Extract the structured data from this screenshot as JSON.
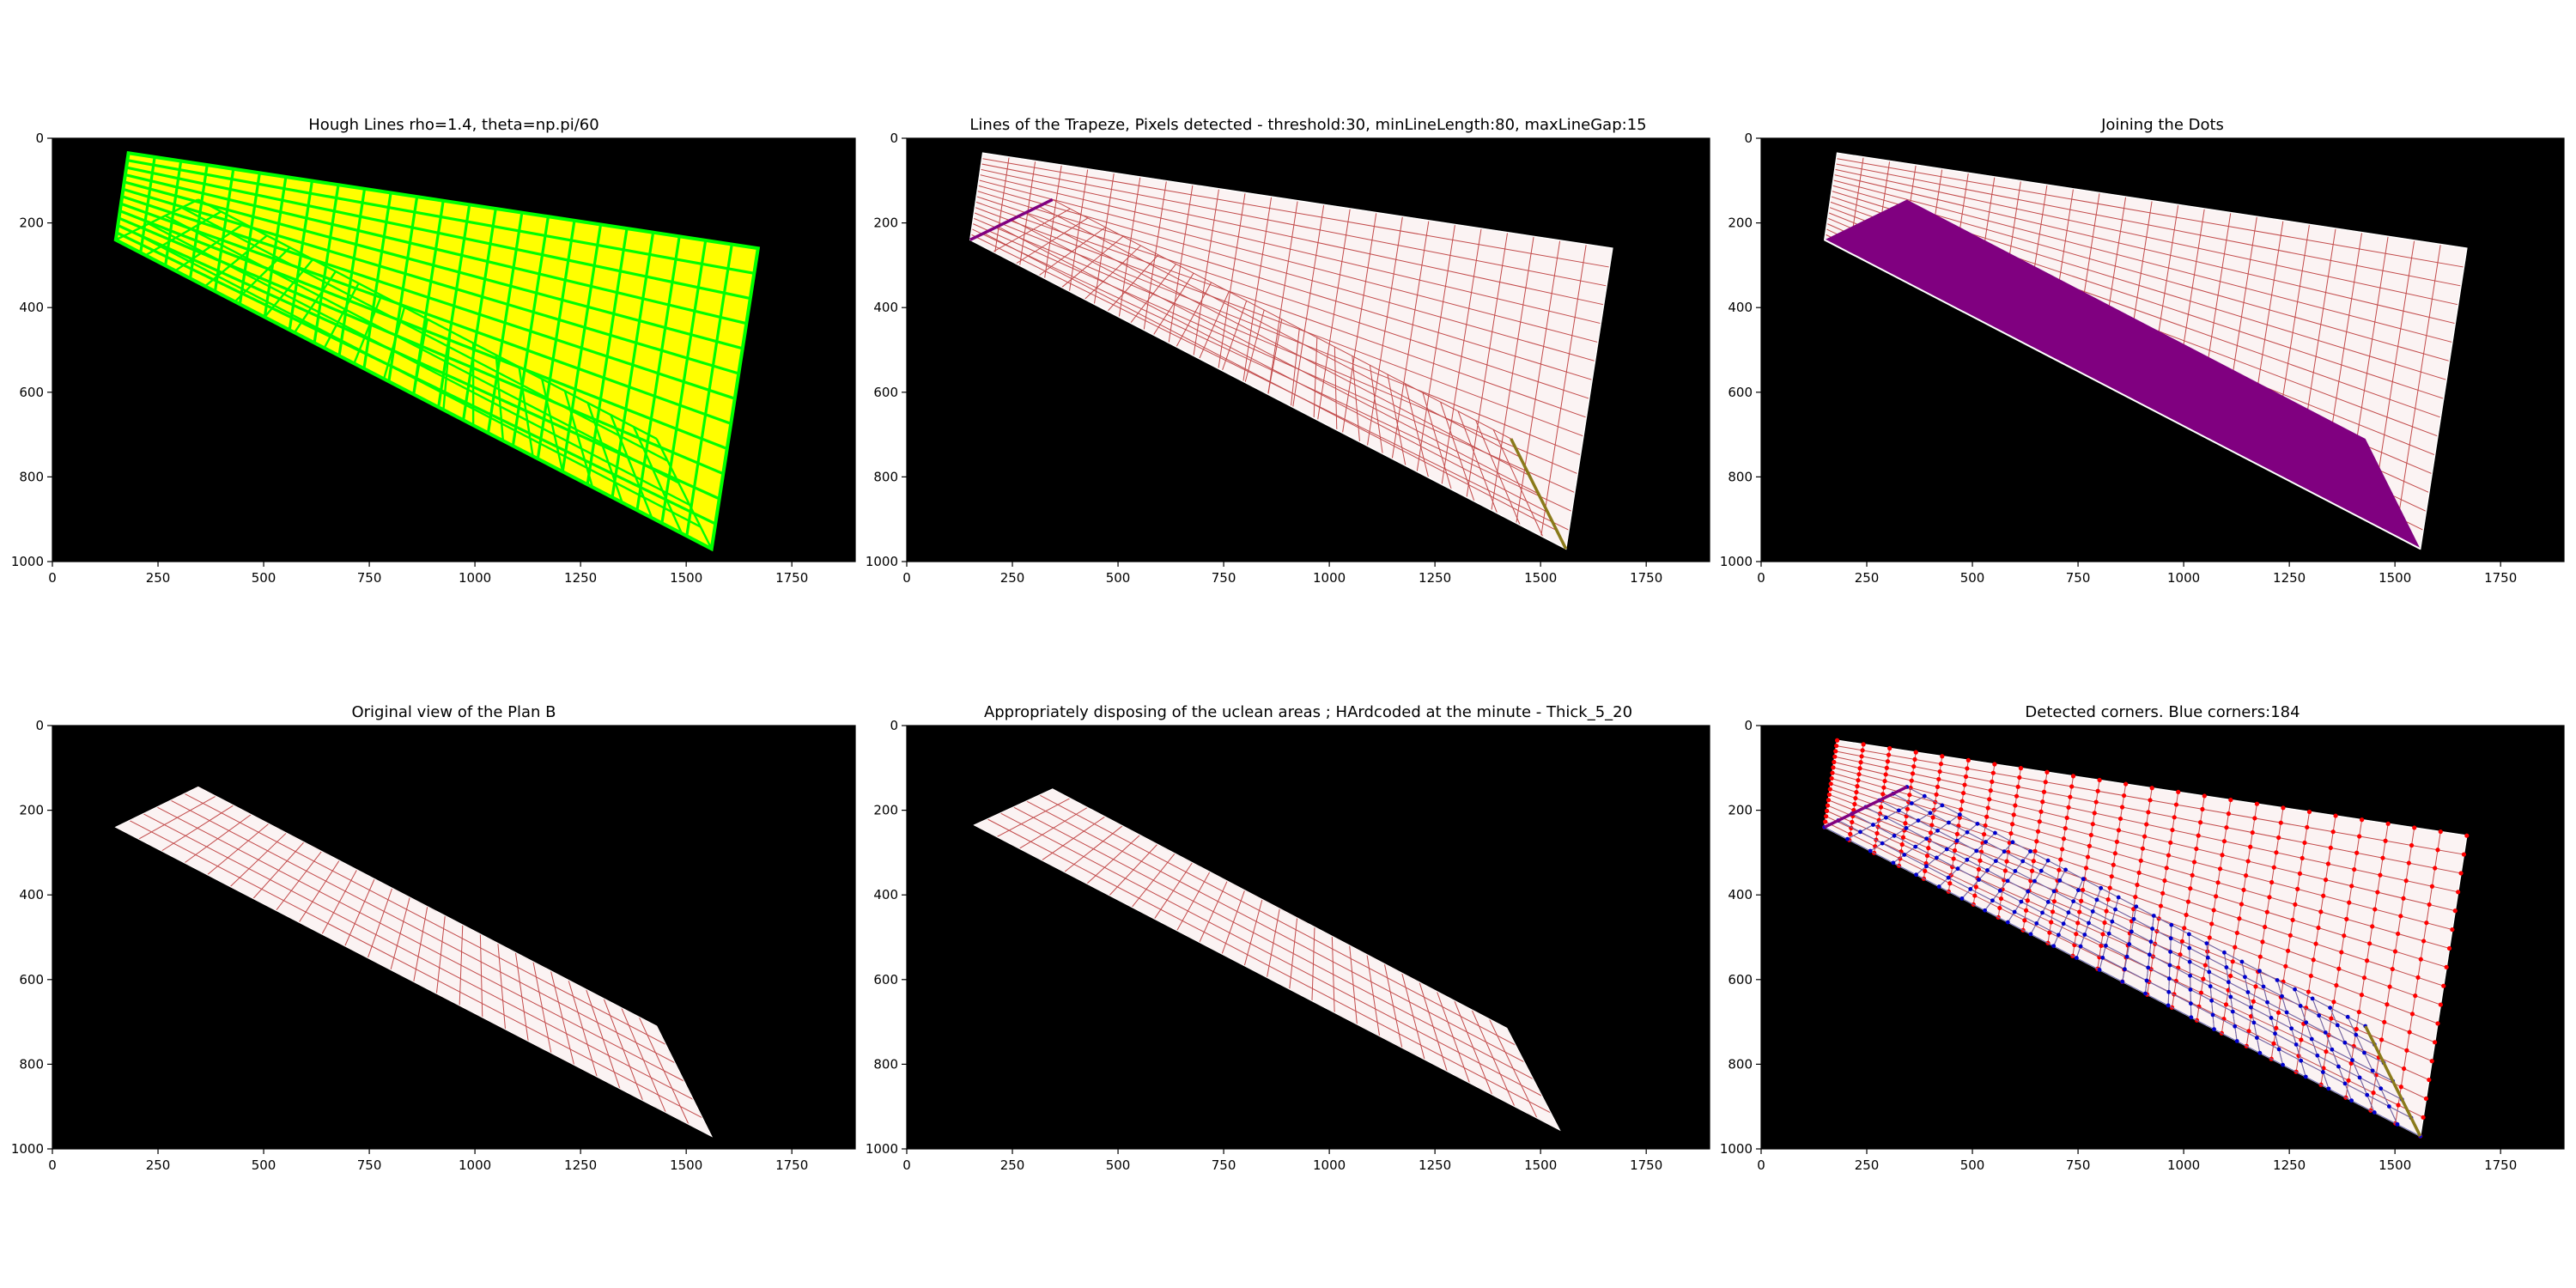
{
  "figure": {
    "background": "#ffffff",
    "image_background": "#000000",
    "colors": {
      "grid_line": "#c24a4a",
      "shape_fill": "#fbf3f3",
      "hough_green": "#00ff00",
      "hough_yellow": "#ffff00",
      "purple": "#800080",
      "olive": "#8a7a1a",
      "corner_red": "#ff0000",
      "corner_blue": "#0000cc"
    }
  },
  "chart_data": [
    {
      "type": "image",
      "title": "Hough Lines rho=1.4, theta=np.pi/60",
      "xlim": [
        0,
        1900
      ],
      "ylim": [
        1000,
        0
      ],
      "xticks": [
        0,
        250,
        500,
        750,
        1000,
        1250,
        1500,
        1750
      ],
      "yticks": [
        0,
        200,
        400,
        600,
        800,
        1000
      ],
      "shape": "trapeze",
      "trapeze_vertices": [
        [
          180,
          35
        ],
        [
          1670,
          260
        ],
        [
          1560,
          970
        ],
        [
          150,
          240
        ]
      ],
      "overlay": "hough_lines",
      "line_colors": [
        "#00ff00",
        "#ffff00"
      ]
    },
    {
      "type": "image",
      "title": "Lines of the Trapeze, Pixels detected - threshold:30, minLineLength:80, maxLineGap:15",
      "xlim": [
        0,
        1900
      ],
      "ylim": [
        1000,
        0
      ],
      "xticks": [
        0,
        250,
        500,
        750,
        1000,
        1250,
        1500,
        1750
      ],
      "yticks": [
        0,
        200,
        400,
        600,
        800,
        1000
      ],
      "shape": "trapeze",
      "trapeze_vertices": [
        [
          180,
          35
        ],
        [
          1670,
          260
        ],
        [
          1560,
          970
        ],
        [
          150,
          240
        ]
      ],
      "inner_vertices": [
        [
          150,
          240
        ],
        [
          345,
          145
        ],
        [
          1430,
          710
        ],
        [
          1560,
          970
        ]
      ],
      "detected_segments": [
        {
          "from": [
            150,
            240
          ],
          "to": [
            345,
            145
          ],
          "color": "#800080"
        },
        {
          "from": [
            1430,
            710
          ],
          "to": [
            1560,
            970
          ],
          "color": "#8a7a1a"
        }
      ]
    },
    {
      "type": "image",
      "title": "Joining the Dots",
      "xlim": [
        0,
        1900
      ],
      "ylim": [
        1000,
        0
      ],
      "xticks": [
        0,
        250,
        500,
        750,
        1000,
        1250,
        1500,
        1750
      ],
      "yticks": [
        0,
        200,
        400,
        600,
        800,
        1000
      ],
      "shape": "trapeze",
      "trapeze_vertices": [
        [
          180,
          35
        ],
        [
          1670,
          260
        ],
        [
          1560,
          970
        ],
        [
          150,
          240
        ]
      ],
      "filled_polygon": [
        [
          150,
          240
        ],
        [
          345,
          145
        ],
        [
          1430,
          710
        ],
        [
          1560,
          970
        ]
      ],
      "fill_color": "#800080"
    },
    {
      "type": "image",
      "title": "Original view of the Plan B",
      "xlim": [
        0,
        1900
      ],
      "ylim": [
        1000,
        0
      ],
      "xticks": [
        0,
        250,
        500,
        750,
        1000,
        1250,
        1500,
        1750
      ],
      "yticks": [
        0,
        200,
        400,
        600,
        800,
        1000
      ],
      "shape": "strip",
      "strip_vertices": [
        [
          150,
          240
        ],
        [
          345,
          145
        ],
        [
          1430,
          710
        ],
        [
          1560,
          970
        ]
      ]
    },
    {
      "type": "image",
      "title": "Appropriately disposing of the uclean areas ; HArdcoded at the minute - Thick_5_20",
      "xlim": [
        0,
        1900
      ],
      "ylim": [
        1000,
        0
      ],
      "xticks": [
        0,
        250,
        500,
        750,
        1000,
        1250,
        1500,
        1750
      ],
      "yticks": [
        0,
        200,
        400,
        600,
        800,
        1000
      ],
      "shape": "strip",
      "strip_vertices": [
        [
          160,
          235
        ],
        [
          345,
          150
        ],
        [
          1420,
          715
        ],
        [
          1545,
          955
        ]
      ]
    },
    {
      "type": "image",
      "title": "Detected corners. Blue corners:184",
      "xlim": [
        0,
        1900
      ],
      "ylim": [
        1000,
        0
      ],
      "xticks": [
        0,
        250,
        500,
        750,
        1000,
        1250,
        1500,
        1750
      ],
      "yticks": [
        0,
        200,
        400,
        600,
        800,
        1000
      ],
      "shape": "trapeze",
      "trapeze_vertices": [
        [
          180,
          35
        ],
        [
          1670,
          260
        ],
        [
          1560,
          970
        ],
        [
          150,
          240
        ]
      ],
      "inner_vertices": [
        [
          150,
          240
        ],
        [
          345,
          145
        ],
        [
          1430,
          710
        ],
        [
          1560,
          970
        ]
      ],
      "blue_corners": 184,
      "corner_colors": [
        "#ff0000",
        "#0000cc"
      ]
    }
  ]
}
